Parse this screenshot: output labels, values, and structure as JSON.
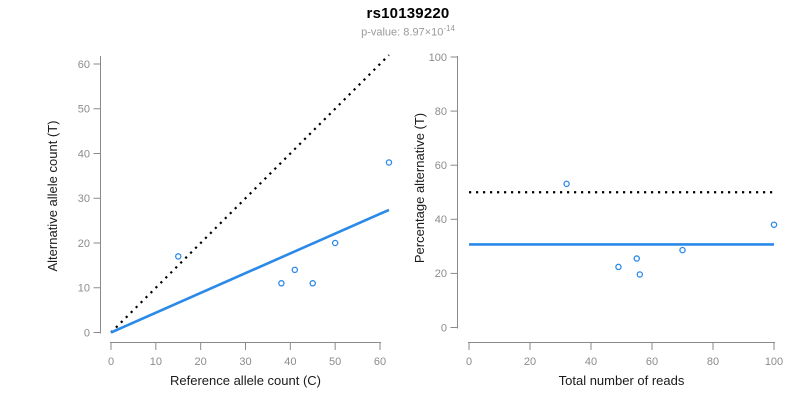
{
  "header": {
    "title": "rs10139220",
    "pvalue_text": "p-value: 8.97×10",
    "pvalue_exponent": "-14"
  },
  "colors": {
    "accent_blue": "#2b8ae8",
    "dotted_black": "#000000",
    "axis_gray": "#8a8a8a",
    "tick_label_gray": "#8c8c8c",
    "axis_title_color": "#1a1a1a",
    "subtitle_gray": "#9a9a9a"
  },
  "chart_data": [
    {
      "type": "scatter",
      "title": "rs10139220",
      "xlabel": "Reference allele count (C)",
      "ylabel": "Alternative allele count (T)",
      "xlim": [
        0,
        60
      ],
      "ylim": [
        0,
        60
      ],
      "xticks": [
        0,
        10,
        20,
        30,
        40,
        50,
        60
      ],
      "yticks": [
        0,
        10,
        20,
        30,
        40,
        50,
        60
      ],
      "grid": false,
      "legend": null,
      "point_style": {
        "shape": "open-circle",
        "color": "#2b8ae8"
      },
      "points": [
        [
          15,
          17
        ],
        [
          38,
          11
        ],
        [
          41,
          14
        ],
        [
          45,
          11
        ],
        [
          50,
          20
        ],
        [
          62,
          38
        ]
      ],
      "lines": [
        {
          "name": "identity-line",
          "style": "dotted",
          "color": "#000000",
          "x1": 0,
          "y1": 0,
          "x2": 62,
          "y2": 62
        },
        {
          "name": "fit-line",
          "style": "solid",
          "color": "#2b8ae8",
          "x1": 0,
          "y1": 0,
          "x2": 62,
          "y2": 27.4
        }
      ]
    },
    {
      "type": "scatter",
      "title": "",
      "xlabel": "Total number of reads",
      "ylabel": "Percentage alternative (T)",
      "xlim": [
        0,
        100
      ],
      "ylim": [
        0,
        100
      ],
      "xticks": [
        0,
        20,
        40,
        60,
        80,
        100
      ],
      "yticks": [
        0,
        20,
        40,
        60,
        80,
        100
      ],
      "grid": false,
      "legend": null,
      "point_style": {
        "shape": "open-circle",
        "color": "#2b8ae8"
      },
      "points": [
        [
          32,
          53.1
        ],
        [
          49,
          22.4
        ],
        [
          55,
          25.5
        ],
        [
          56,
          19.6
        ],
        [
          70,
          28.6
        ],
        [
          100,
          38
        ]
      ],
      "lines": [
        {
          "name": "fifty-percent-line",
          "style": "dotted",
          "color": "#000000",
          "x1": 0,
          "y1": 50,
          "x2": 100,
          "y2": 50
        },
        {
          "name": "mean-percentage-line",
          "style": "solid",
          "color": "#2b8ae8",
          "x1": 0,
          "y1": 30.7,
          "x2": 100,
          "y2": 30.7
        }
      ]
    }
  ]
}
